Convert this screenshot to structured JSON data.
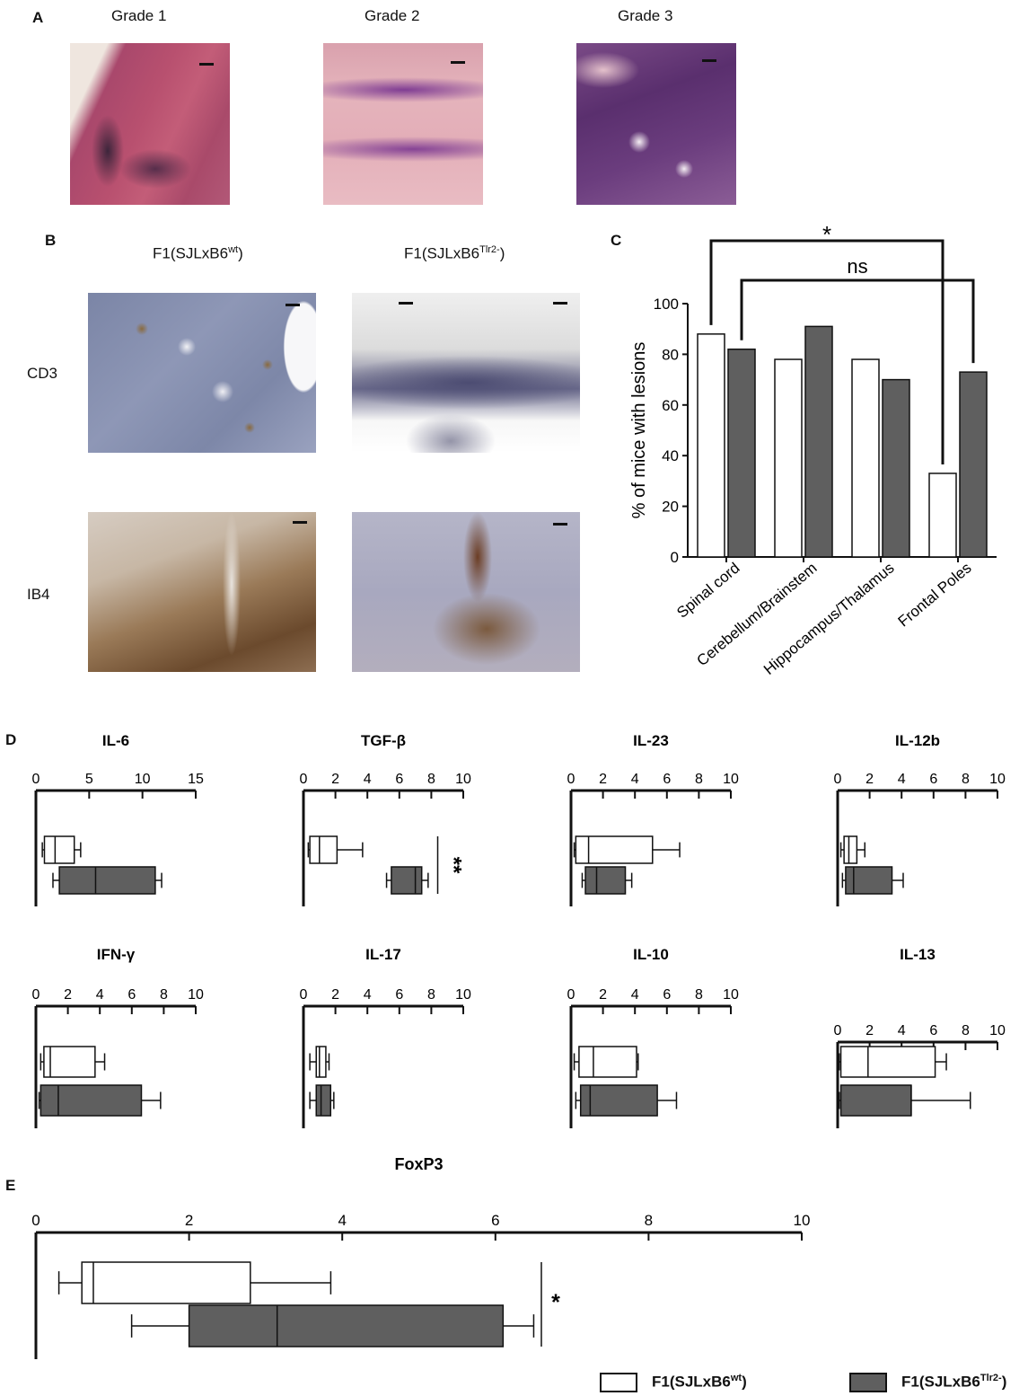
{
  "panels": {
    "a": {
      "letter": "A",
      "grades": [
        "Grade 1",
        "Grade 2",
        "Grade 3"
      ]
    },
    "b": {
      "letter": "B",
      "col_wt": "F1(SJLxB6",
      "col_wt_sup": "wt",
      "col_wt_close": ")",
      "col_ko": "F1(SJLxB6",
      "col_ko_sup": "Tlr2-",
      "col_ko_close": ")",
      "row_cd3": "CD3",
      "row_ib4": "IB4"
    },
    "c": {
      "letter": "C"
    },
    "d": {
      "letter": "D"
    },
    "e": {
      "letter": "E"
    }
  },
  "legend": {
    "wt_label": "F1(SJLxB6",
    "wt_sup": "wt",
    "wt_close": ")",
    "ko_label": "F1(SJLxB6",
    "ko_sup": "Tlr2-",
    "ko_close": ")",
    "wt_color": "#ffffff",
    "ko_color": "#5f5f5f"
  },
  "chart_data": [
    {
      "type": "bar",
      "panel": "C",
      "categories": [
        "Spinal cord",
        "Cerebellum/Brainstem",
        "Hippocampus/Thalamus",
        "Frontal Poles"
      ],
      "series": [
        {
          "name": "F1(SJLxB6wt)",
          "values": [
            88,
            78,
            78,
            33
          ]
        },
        {
          "name": "F1(SJLxB6Tlr2-)",
          "values": [
            82,
            91,
            70,
            73
          ]
        }
      ],
      "ylabel": "% of mice with lesions",
      "ylim": [
        0,
        100
      ],
      "yticks": [
        0,
        20,
        40,
        60,
        80,
        100
      ],
      "annotations": [
        {
          "text": "*",
          "from": "Spinal cord",
          "to": "Frontal Poles",
          "series": "F1(SJLxB6wt)"
        },
        {
          "text": "ns",
          "from": "Spinal cord",
          "to": "Frontal Poles",
          "series": "F1(SJLxB6Tlr2-)"
        }
      ]
    },
    {
      "type": "box",
      "panel": "D",
      "title": "IL-6",
      "xlim": [
        0,
        15
      ],
      "xticks": [
        "0",
        "5",
        "10",
        "15"
      ],
      "series": [
        {
          "name": "F1(SJLxB6wt)",
          "whisker_min": 0.6,
          "q1": 0.8,
          "median": 1.8,
          "q3": 3.6,
          "whisker_max": 4.2
        },
        {
          "name": "F1(SJLxB6Tlr2-)",
          "whisker_min": 1.6,
          "q1": 2.2,
          "median": 5.6,
          "q3": 11.2,
          "whisker_max": 11.8
        }
      ],
      "annotation": ""
    },
    {
      "type": "box",
      "panel": "D",
      "title": "TGF-β",
      "xlim": [
        0,
        10
      ],
      "xticks": [
        "0",
        "2",
        "4",
        "6",
        "8",
        "10"
      ],
      "series": [
        {
          "name": "F1(SJLxB6wt)",
          "whisker_min": 0.3,
          "q1": 0.4,
          "median": 1.0,
          "q3": 2.1,
          "whisker_max": 3.7
        },
        {
          "name": "F1(SJLxB6Tlr2-)",
          "whisker_min": 5.2,
          "q1": 5.5,
          "median": 7.0,
          "q3": 7.4,
          "whisker_max": 7.8
        }
      ],
      "annotation": "**"
    },
    {
      "type": "box",
      "panel": "D",
      "title": "IL-23",
      "xlim": [
        0,
        10
      ],
      "xticks": [
        "0",
        "2",
        "4",
        "6",
        "8",
        "10"
      ],
      "series": [
        {
          "name": "F1(SJLxB6wt)",
          "whisker_min": 0.2,
          "q1": 0.3,
          "median": 1.1,
          "q3": 5.1,
          "whisker_max": 6.8
        },
        {
          "name": "F1(SJLxB6Tlr2-)",
          "whisker_min": 0.7,
          "q1": 0.9,
          "median": 1.6,
          "q3": 3.4,
          "whisker_max": 3.8
        }
      ],
      "annotation": ""
    },
    {
      "type": "box",
      "panel": "D",
      "title": "IL-12b",
      "xlim": [
        0,
        10
      ],
      "xticks": [
        "0",
        "2",
        "4",
        "6",
        "8",
        "10"
      ],
      "series": [
        {
          "name": "F1(SJLxB6wt)",
          "whisker_min": 0.2,
          "q1": 0.4,
          "median": 0.7,
          "q3": 1.2,
          "whisker_max": 1.7
        },
        {
          "name": "F1(SJLxB6Tlr2-)",
          "whisker_min": 0.3,
          "q1": 0.5,
          "median": 1.0,
          "q3": 3.4,
          "whisker_max": 4.1
        }
      ],
      "annotation": ""
    },
    {
      "type": "box",
      "panel": "D",
      "title": "IFN-γ",
      "xlim": [
        0,
        10
      ],
      "xticks": [
        "0",
        "2",
        "4",
        "6",
        "8",
        "10"
      ],
      "series": [
        {
          "name": "F1(SJLxB6wt)",
          "whisker_min": 0.3,
          "q1": 0.5,
          "median": 0.9,
          "q3": 3.7,
          "whisker_max": 4.3
        },
        {
          "name": "F1(SJLxB6Tlr2-)",
          "whisker_min": 0.2,
          "q1": 0.3,
          "median": 1.4,
          "q3": 6.6,
          "whisker_max": 7.8
        }
      ],
      "annotation": ""
    },
    {
      "type": "box",
      "panel": "D",
      "title": "IL-17",
      "xlim": [
        0,
        10
      ],
      "xticks": [
        "0",
        "2",
        "4",
        "6",
        "8",
        "10"
      ],
      "series": [
        {
          "name": "F1(SJLxB6wt)",
          "whisker_min": 0.4,
          "q1": 0.8,
          "median": 1.0,
          "q3": 1.4,
          "whisker_max": 1.6
        },
        {
          "name": "F1(SJLxB6Tlr2-)",
          "whisker_min": 0.4,
          "q1": 0.8,
          "median": 1.1,
          "q3": 1.7,
          "whisker_max": 1.9
        }
      ],
      "annotation": ""
    },
    {
      "type": "box",
      "panel": "D",
      "title": "IL-10",
      "xlim": [
        0,
        10
      ],
      "xticks": [
        "0",
        "2",
        "4",
        "6",
        "8",
        "10"
      ],
      "series": [
        {
          "name": "F1(SJLxB6wt)",
          "whisker_min": 0.2,
          "q1": 0.5,
          "median": 1.4,
          "q3": 4.1,
          "whisker_max": 4.2
        },
        {
          "name": "F1(SJLxB6Tlr2-)",
          "whisker_min": 0.3,
          "q1": 0.6,
          "median": 1.2,
          "q3": 5.4,
          "whisker_max": 6.6
        }
      ],
      "annotation": ""
    },
    {
      "type": "box",
      "panel": "D",
      "title": "IL-13",
      "xlim": [
        0,
        10
      ],
      "xticks": [
        "0",
        "2",
        "4",
        "6",
        "8",
        "10"
      ],
      "series": [
        {
          "name": "F1(SJLxB6wt)",
          "whisker_min": 0.1,
          "q1": 0.2,
          "median": 1.9,
          "q3": 6.1,
          "whisker_max": 6.8
        },
        {
          "name": "F1(SJLxB6Tlr2-)",
          "whisker_min": 0.1,
          "q1": 0.2,
          "median": 4.6,
          "q3": 4.6,
          "whisker_max": 8.3
        }
      ],
      "annotation": ""
    },
    {
      "type": "box",
      "panel": "E",
      "title": "FoxP3",
      "xlim": [
        0,
        10
      ],
      "xticks": [
        "0",
        "2",
        "4",
        "6",
        "8",
        "10"
      ],
      "series": [
        {
          "name": "F1(SJLxB6wt)",
          "whisker_min": 0.3,
          "q1": 0.6,
          "median": 0.75,
          "q3": 2.8,
          "whisker_max": 3.85
        },
        {
          "name": "F1(SJLxB6Tlr2-)",
          "whisker_min": 1.25,
          "q1": 2.0,
          "median": 3.15,
          "q3": 6.1,
          "whisker_max": 6.5
        }
      ],
      "annotation": "*"
    }
  ]
}
